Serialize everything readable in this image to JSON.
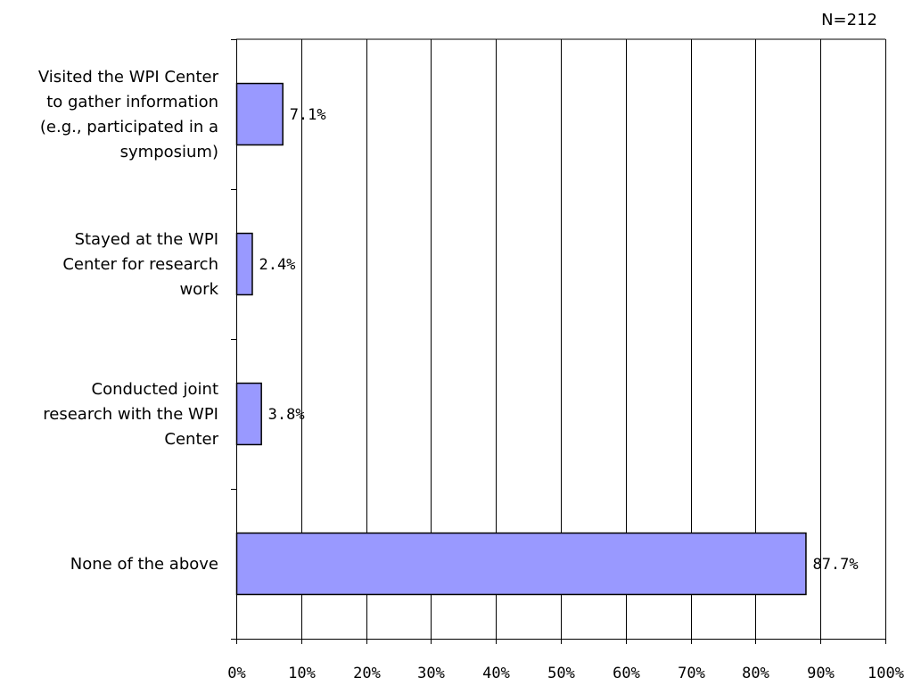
{
  "chart_data": {
    "type": "bar",
    "orientation": "horizontal",
    "note": "N=212",
    "categories": [
      [
        "Visited the WPI Center",
        "to gather information",
        "(e.g., participated in a",
        "symposium)"
      ],
      [
        "Stayed at the WPI",
        "Center for research",
        "work"
      ],
      [
        "Conducted joint",
        "research with the WPI",
        "Center"
      ],
      [
        "None of the above"
      ]
    ],
    "values": [
      7.1,
      2.4,
      3.8,
      87.7
    ],
    "data_labels": [
      "7.1%",
      "2.4%",
      "3.8%",
      "87.7%"
    ],
    "xlim": [
      0,
      100
    ],
    "x_ticks": [
      0,
      10,
      20,
      30,
      40,
      50,
      60,
      70,
      80,
      90,
      100
    ],
    "x_tick_labels": [
      "0%",
      "10%",
      "20%",
      "30%",
      "40%",
      "50%",
      "60%",
      "70%",
      "80%",
      "90%",
      "100%"
    ],
    "title": "",
    "xlabel": "",
    "ylabel": "",
    "grid": "vertical",
    "legend": "none",
    "colors": {
      "bar_fill": "#9999ff",
      "bar_stroke": "#000000",
      "grid": "#000000",
      "axis": "#000000"
    }
  }
}
